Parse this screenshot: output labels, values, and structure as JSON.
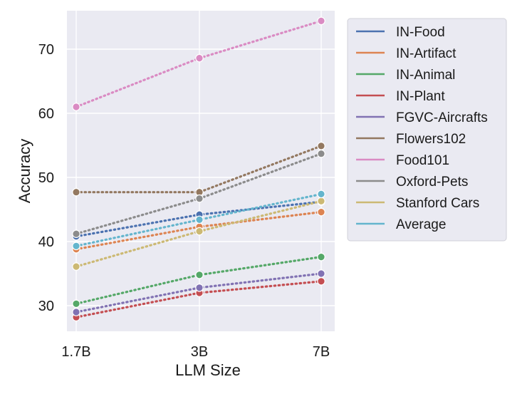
{
  "chart_data": {
    "type": "line",
    "title": "",
    "xlabel": "LLM Size",
    "ylabel": "Accuracy",
    "categories": [
      "1.7B",
      "3B",
      "7B"
    ],
    "ylim": [
      26,
      76
    ],
    "yticks": [
      30,
      40,
      50,
      60,
      70
    ],
    "grid": true,
    "legend_position": "outside-right",
    "line_style": "dotted",
    "marker": "circle",
    "series": [
      {
        "name": "IN-Food",
        "color": "#4c72b0",
        "values": [
          40.8,
          44.2,
          46.2
        ]
      },
      {
        "name": "IN-Artifact",
        "color": "#dd8452",
        "values": [
          38.8,
          42.3,
          44.6
        ]
      },
      {
        "name": "IN-Animal",
        "color": "#55a868",
        "values": [
          30.3,
          34.8,
          37.6
        ]
      },
      {
        "name": "IN-Plant",
        "color": "#c44e52",
        "values": [
          28.2,
          32.0,
          33.8
        ]
      },
      {
        "name": "FGVC-Aircrafts",
        "color": "#8172b3",
        "values": [
          29.0,
          32.8,
          35.0
        ]
      },
      {
        "name": "Flowers102",
        "color": "#937860",
        "values": [
          47.7,
          47.7,
          54.9
        ]
      },
      {
        "name": "Food101",
        "color": "#da8bc3",
        "values": [
          61.0,
          68.6,
          74.4
        ]
      },
      {
        "name": "Oxford-Pets",
        "color": "#8c8c8c",
        "values": [
          41.2,
          46.7,
          53.7
        ]
      },
      {
        "name": "Stanford Cars",
        "color": "#ccb974",
        "values": [
          36.1,
          41.6,
          46.3
        ]
      },
      {
        "name": "Average",
        "color": "#64b5cd",
        "values": [
          39.3,
          43.4,
          47.4
        ]
      }
    ]
  }
}
